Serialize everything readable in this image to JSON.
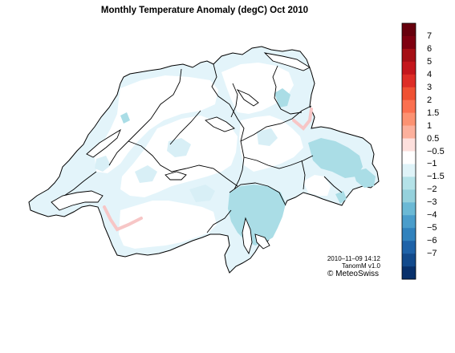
{
  "title": "Monthly Temperature Anomaly (degC) Oct 2010",
  "timestamp": "2010–11–09 14:12",
  "product": "TanomM v1.0",
  "copyright": "© MeteoSwiss",
  "colorbar": {
    "colors": [
      "#67000d",
      "#7f0010",
      "#a50f15",
      "#c4161c",
      "#de2d26",
      "#ef5133",
      "#fb7050",
      "#fc9272",
      "#fcb09c",
      "#fde0dd",
      "#ffffff",
      "#dff3f8",
      "#b4e2e8",
      "#95d1dc",
      "#6bb9d5",
      "#4a9dcb",
      "#3182bd",
      "#1e62a8",
      "#124a8c",
      "#08306b"
    ],
    "labels": [
      "7",
      "6",
      "5",
      "4",
      "3",
      "2",
      "1.5",
      "1",
      "0.5",
      "−0.5",
      "−1",
      "−1.5",
      "−2",
      "−3",
      "−4",
      "−5",
      "−6",
      "−7"
    ]
  }
}
